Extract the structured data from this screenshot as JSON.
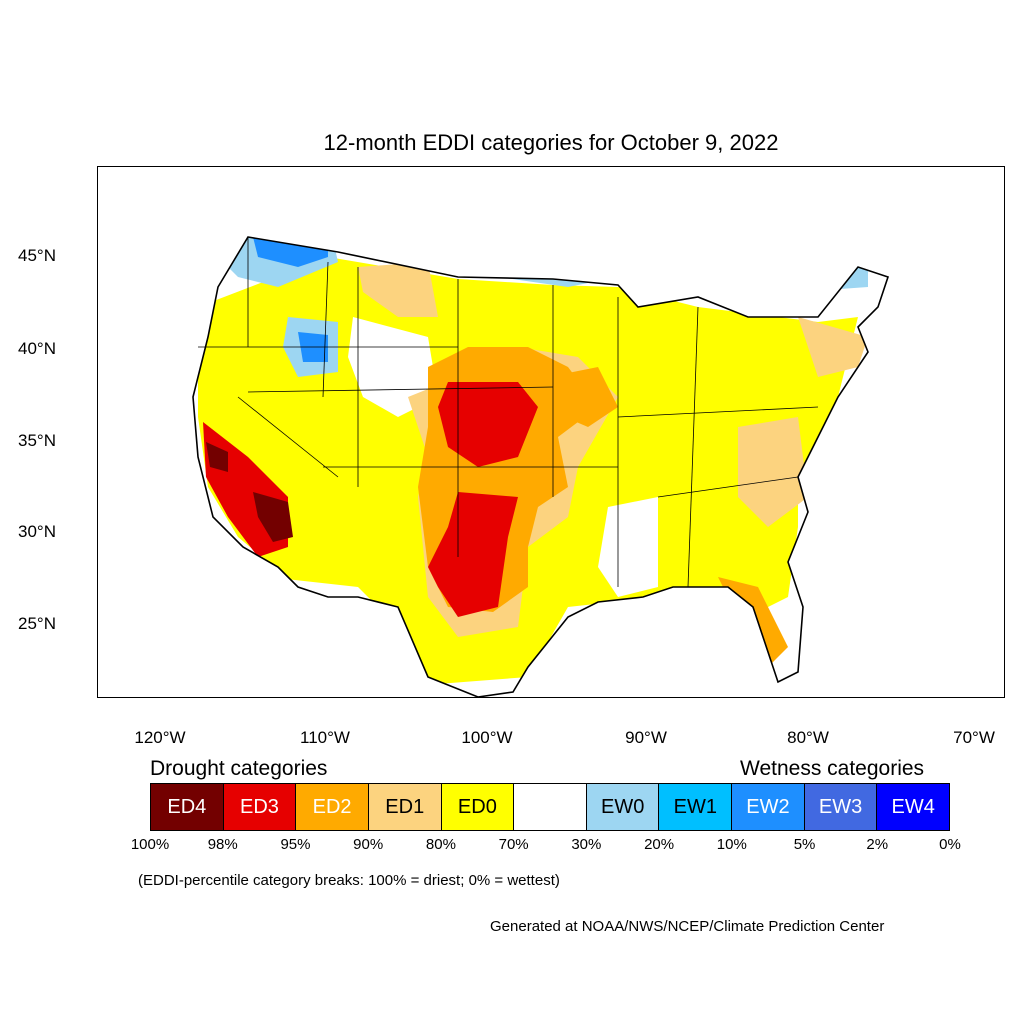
{
  "title": "12-month EDDI categories for October 9, 2022",
  "map": {
    "region": "CONUS",
    "lat_labels": [
      "45°N",
      "40°N",
      "35°N",
      "30°N",
      "25°N"
    ],
    "lon_labels": [
      "120°W",
      "110°W",
      "100°W",
      "90°W",
      "80°W",
      "70°W"
    ]
  },
  "legend": {
    "drought_heading": "Drought categories",
    "wetness_heading": "Wetness categories",
    "categories": [
      {
        "label": "ED4",
        "color": "#730000",
        "text_color": "#ffffff"
      },
      {
        "label": "ED3",
        "color": "#e60000",
        "text_color": "#ffffff"
      },
      {
        "label": "ED2",
        "color": "#ffaa00",
        "text_color": "#ffffff"
      },
      {
        "label": "ED1",
        "color": "#fcd37f",
        "text_color": "#000000"
      },
      {
        "label": "ED0",
        "color": "#ffff00",
        "text_color": "#000000"
      },
      {
        "label": "",
        "color": "#ffffff",
        "text_color": "#000000"
      },
      {
        "label": "EW0",
        "color": "#9dd6f2",
        "text_color": "#000000"
      },
      {
        "label": "EW1",
        "color": "#00bfff",
        "text_color": "#000000"
      },
      {
        "label": "EW2",
        "color": "#1e8fff",
        "text_color": "#ffffff"
      },
      {
        "label": "EW3",
        "color": "#4169e1",
        "text_color": "#ffffff"
      },
      {
        "label": "EW4",
        "color": "#0000ff",
        "text_color": "#ffffff"
      }
    ],
    "percentiles": [
      "100%",
      "98%",
      "95%",
      "90%",
      "80%",
      "70%",
      "30%",
      "20%",
      "10%",
      "5%",
      "2%",
      "0%"
    ]
  },
  "note": "(EDDI-percentile category breaks: 100% = driest; 0% = wettest)",
  "credit": "Generated at NOAA/NWS/NCEP/Climate Prediction Center"
}
